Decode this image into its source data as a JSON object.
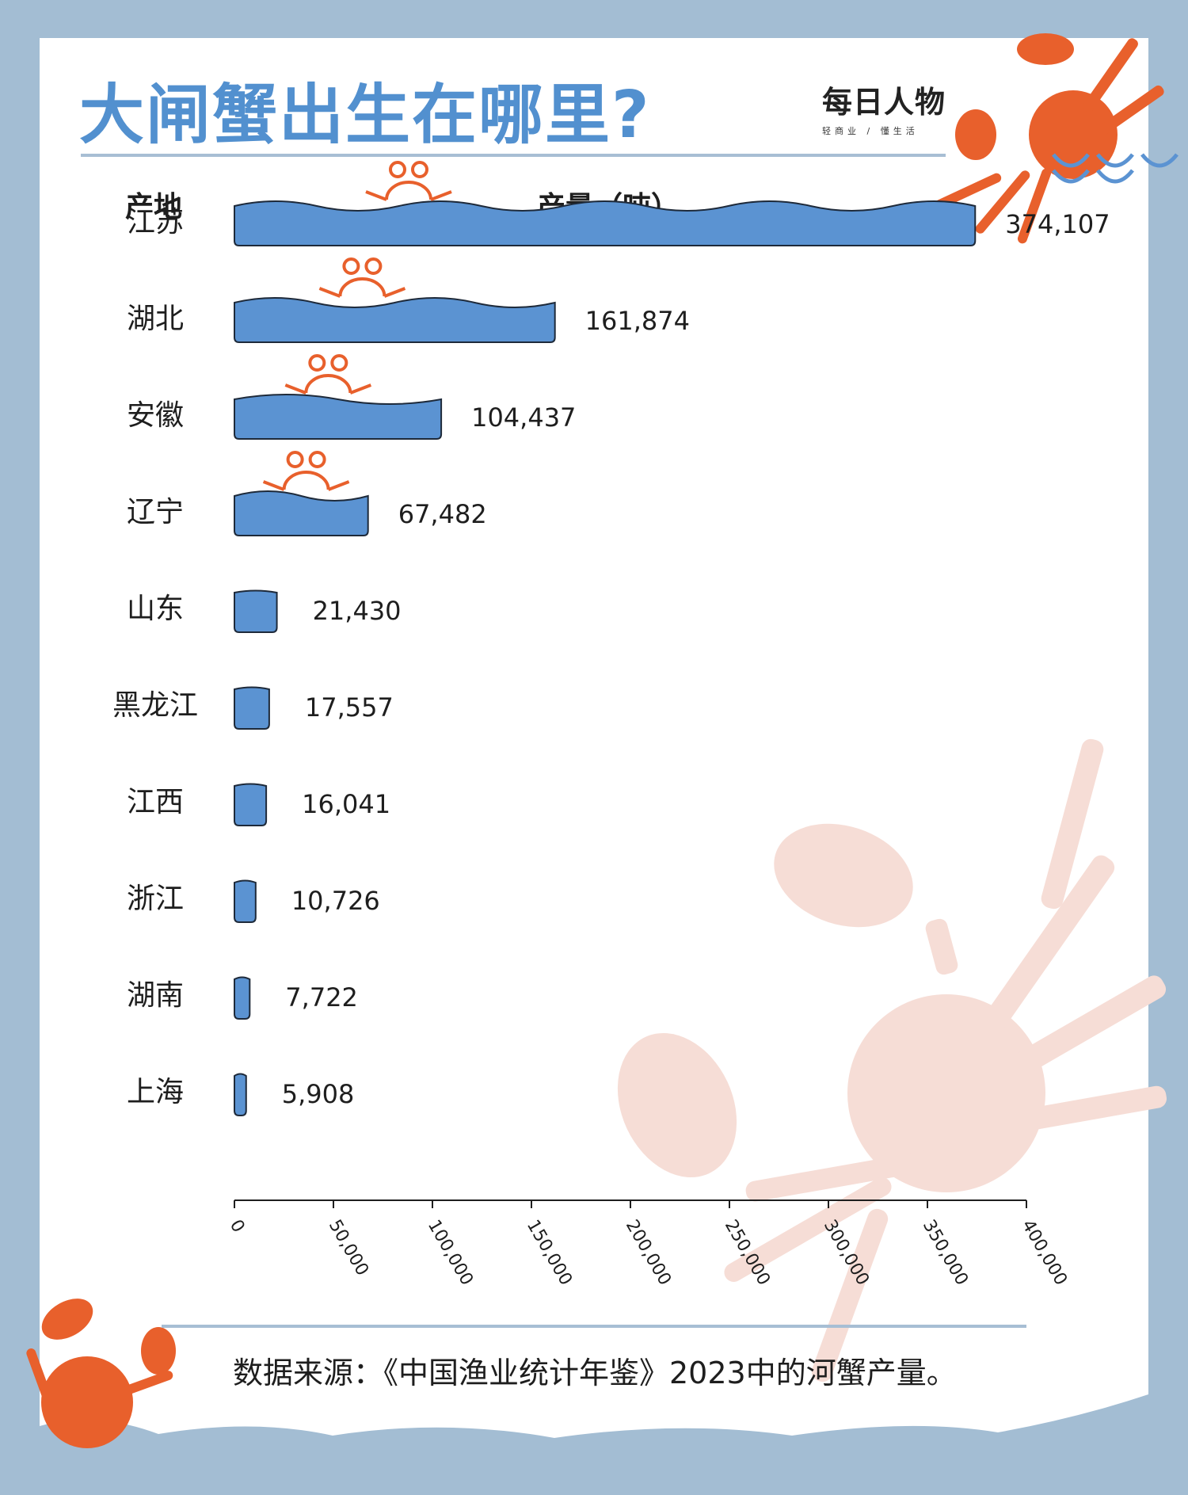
{
  "title": "大闸蟹出生在哪里?",
  "logo": {
    "name": "每日人物",
    "tagline": "轻商业 / 懂生活"
  },
  "headers": {
    "origin": "产地",
    "output": "产量（吨）"
  },
  "source_note": "数据来源：《中国渔业统计年鉴》2023中的河蟹产量。",
  "colors": {
    "bar": "#5b93d2",
    "title": "#5290cf",
    "crab": "#e8602c",
    "crab_faded": "#f6ddd6",
    "frame": "#a3bdd3"
  },
  "chart_data": {
    "type": "bar",
    "orientation": "horizontal",
    "categories": [
      "江苏",
      "湖北",
      "安徽",
      "辽宁",
      "山东",
      "黑龙江",
      "江西",
      "浙江",
      "湖南",
      "上海"
    ],
    "values": [
      374107,
      161874,
      104437,
      67482,
      21430,
      17557,
      16041,
      10726,
      7722,
      5908
    ],
    "value_labels": [
      "374,107",
      "161,874",
      "104,437",
      "67,482",
      "21,430",
      "17,557",
      "16,041",
      "10,726",
      "7,722",
      "5,908"
    ],
    "xlim": [
      0,
      400000
    ],
    "x_ticks": [
      "0",
      "50,000",
      "100,000",
      "150,000",
      "200,000",
      "250,000",
      "300,000",
      "350,000",
      "400,000"
    ],
    "grid": false,
    "legend": "none"
  }
}
